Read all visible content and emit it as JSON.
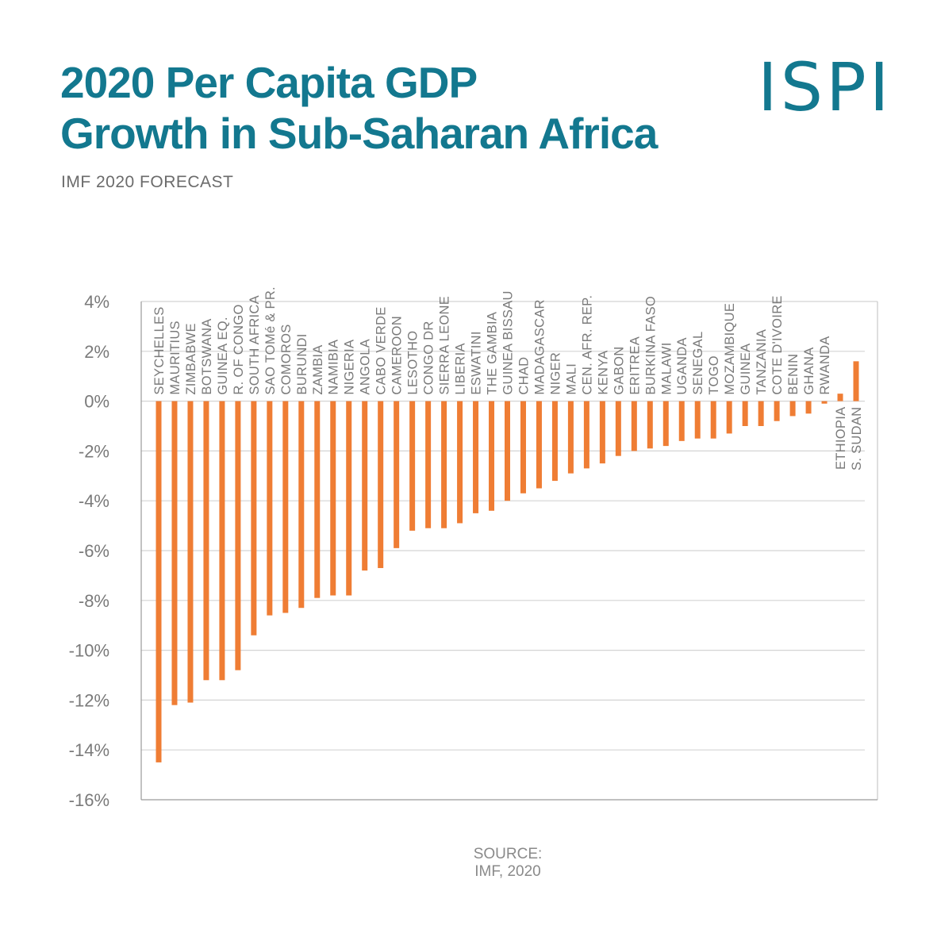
{
  "header": {
    "title_line1": "2020 Per Capita GDP",
    "title_line2": "Growth in Sub-Saharan Africa",
    "subtitle": "IMF 2020 FORECAST",
    "logo_text": "ISPI"
  },
  "footer": {
    "source_line1": "SOURCE:",
    "source_line2": "IMF, 2020"
  },
  "colors": {
    "title": "#13788f",
    "bar": "#ef7d34",
    "grid": "#d4d4d4",
    "axis_text": "#7a7a7a",
    "label_text": "#7a7a7a"
  },
  "chart_data": {
    "type": "bar",
    "title": "2020 Per Capita GDP Growth in Sub-Saharan Africa",
    "subtitle": "IMF 2020 FORECAST",
    "xlabel": "",
    "ylabel": "",
    "ylim": [
      -16,
      4
    ],
    "yticks": [
      4,
      2,
      0,
      -2,
      -4,
      -6,
      -8,
      -10,
      -12,
      -14,
      -16
    ],
    "ytick_labels": [
      "4%",
      "2%",
      "0%",
      "-2%",
      "-4%",
      "-6%",
      "-8%",
      "-10%",
      "-12%",
      "-14%",
      "-16%"
    ],
    "grid": true,
    "legend": "none",
    "categories": [
      "SEYCHELLES",
      "MAURITIUS",
      "ZIMBABWE",
      "BOTSWANA",
      "GUINEA EQ.",
      "R. OF CONGO",
      "SOUTH AFRICA",
      "SAO TOMé & PR.",
      "COMOROS",
      "BURUNDI",
      "ZAMBIA",
      "NAMIBIA",
      "NIGERIA",
      "ANGOLA",
      "CABO VERDE",
      "CAMEROON",
      "LESOTHO",
      "CONGO DR",
      "SIERRA LEONE",
      "LIBERIA",
      "ESWATINI",
      "THE GAMBIA",
      "GUINEA BISSAU",
      "CHAD",
      "MADAGASCAR",
      "NIGER",
      "MALI",
      "CEN. AFR. REP.",
      "KENYA",
      "GABON",
      "ERITREA",
      "BURKINA FASO",
      "MALAWI",
      "UGANDA",
      "SENEGAL",
      "TOGO",
      "MOZAMBIQUE",
      "GUINEA",
      "TANZANIA",
      "COTE D'IVOIRE",
      "BENIN",
      "GHANA",
      "RWANDA",
      "ETHIOPIA",
      "S. SUDAN"
    ],
    "values": [
      -14.5,
      -12.2,
      -12.1,
      -11.2,
      -11.2,
      -10.8,
      -9.4,
      -8.6,
      -8.5,
      -8.3,
      -7.9,
      -7.8,
      -7.8,
      -6.8,
      -6.7,
      -5.9,
      -5.2,
      -5.1,
      -5.1,
      -4.9,
      -4.5,
      -4.4,
      -4.0,
      -3.7,
      -3.5,
      -3.2,
      -2.9,
      -2.7,
      -2.5,
      -2.2,
      -2.0,
      -1.9,
      -1.8,
      -1.6,
      -1.5,
      -1.5,
      -1.3,
      -1.0,
      -1.0,
      -0.8,
      -0.6,
      -0.5,
      -0.1,
      0.3,
      1.6
    ]
  }
}
